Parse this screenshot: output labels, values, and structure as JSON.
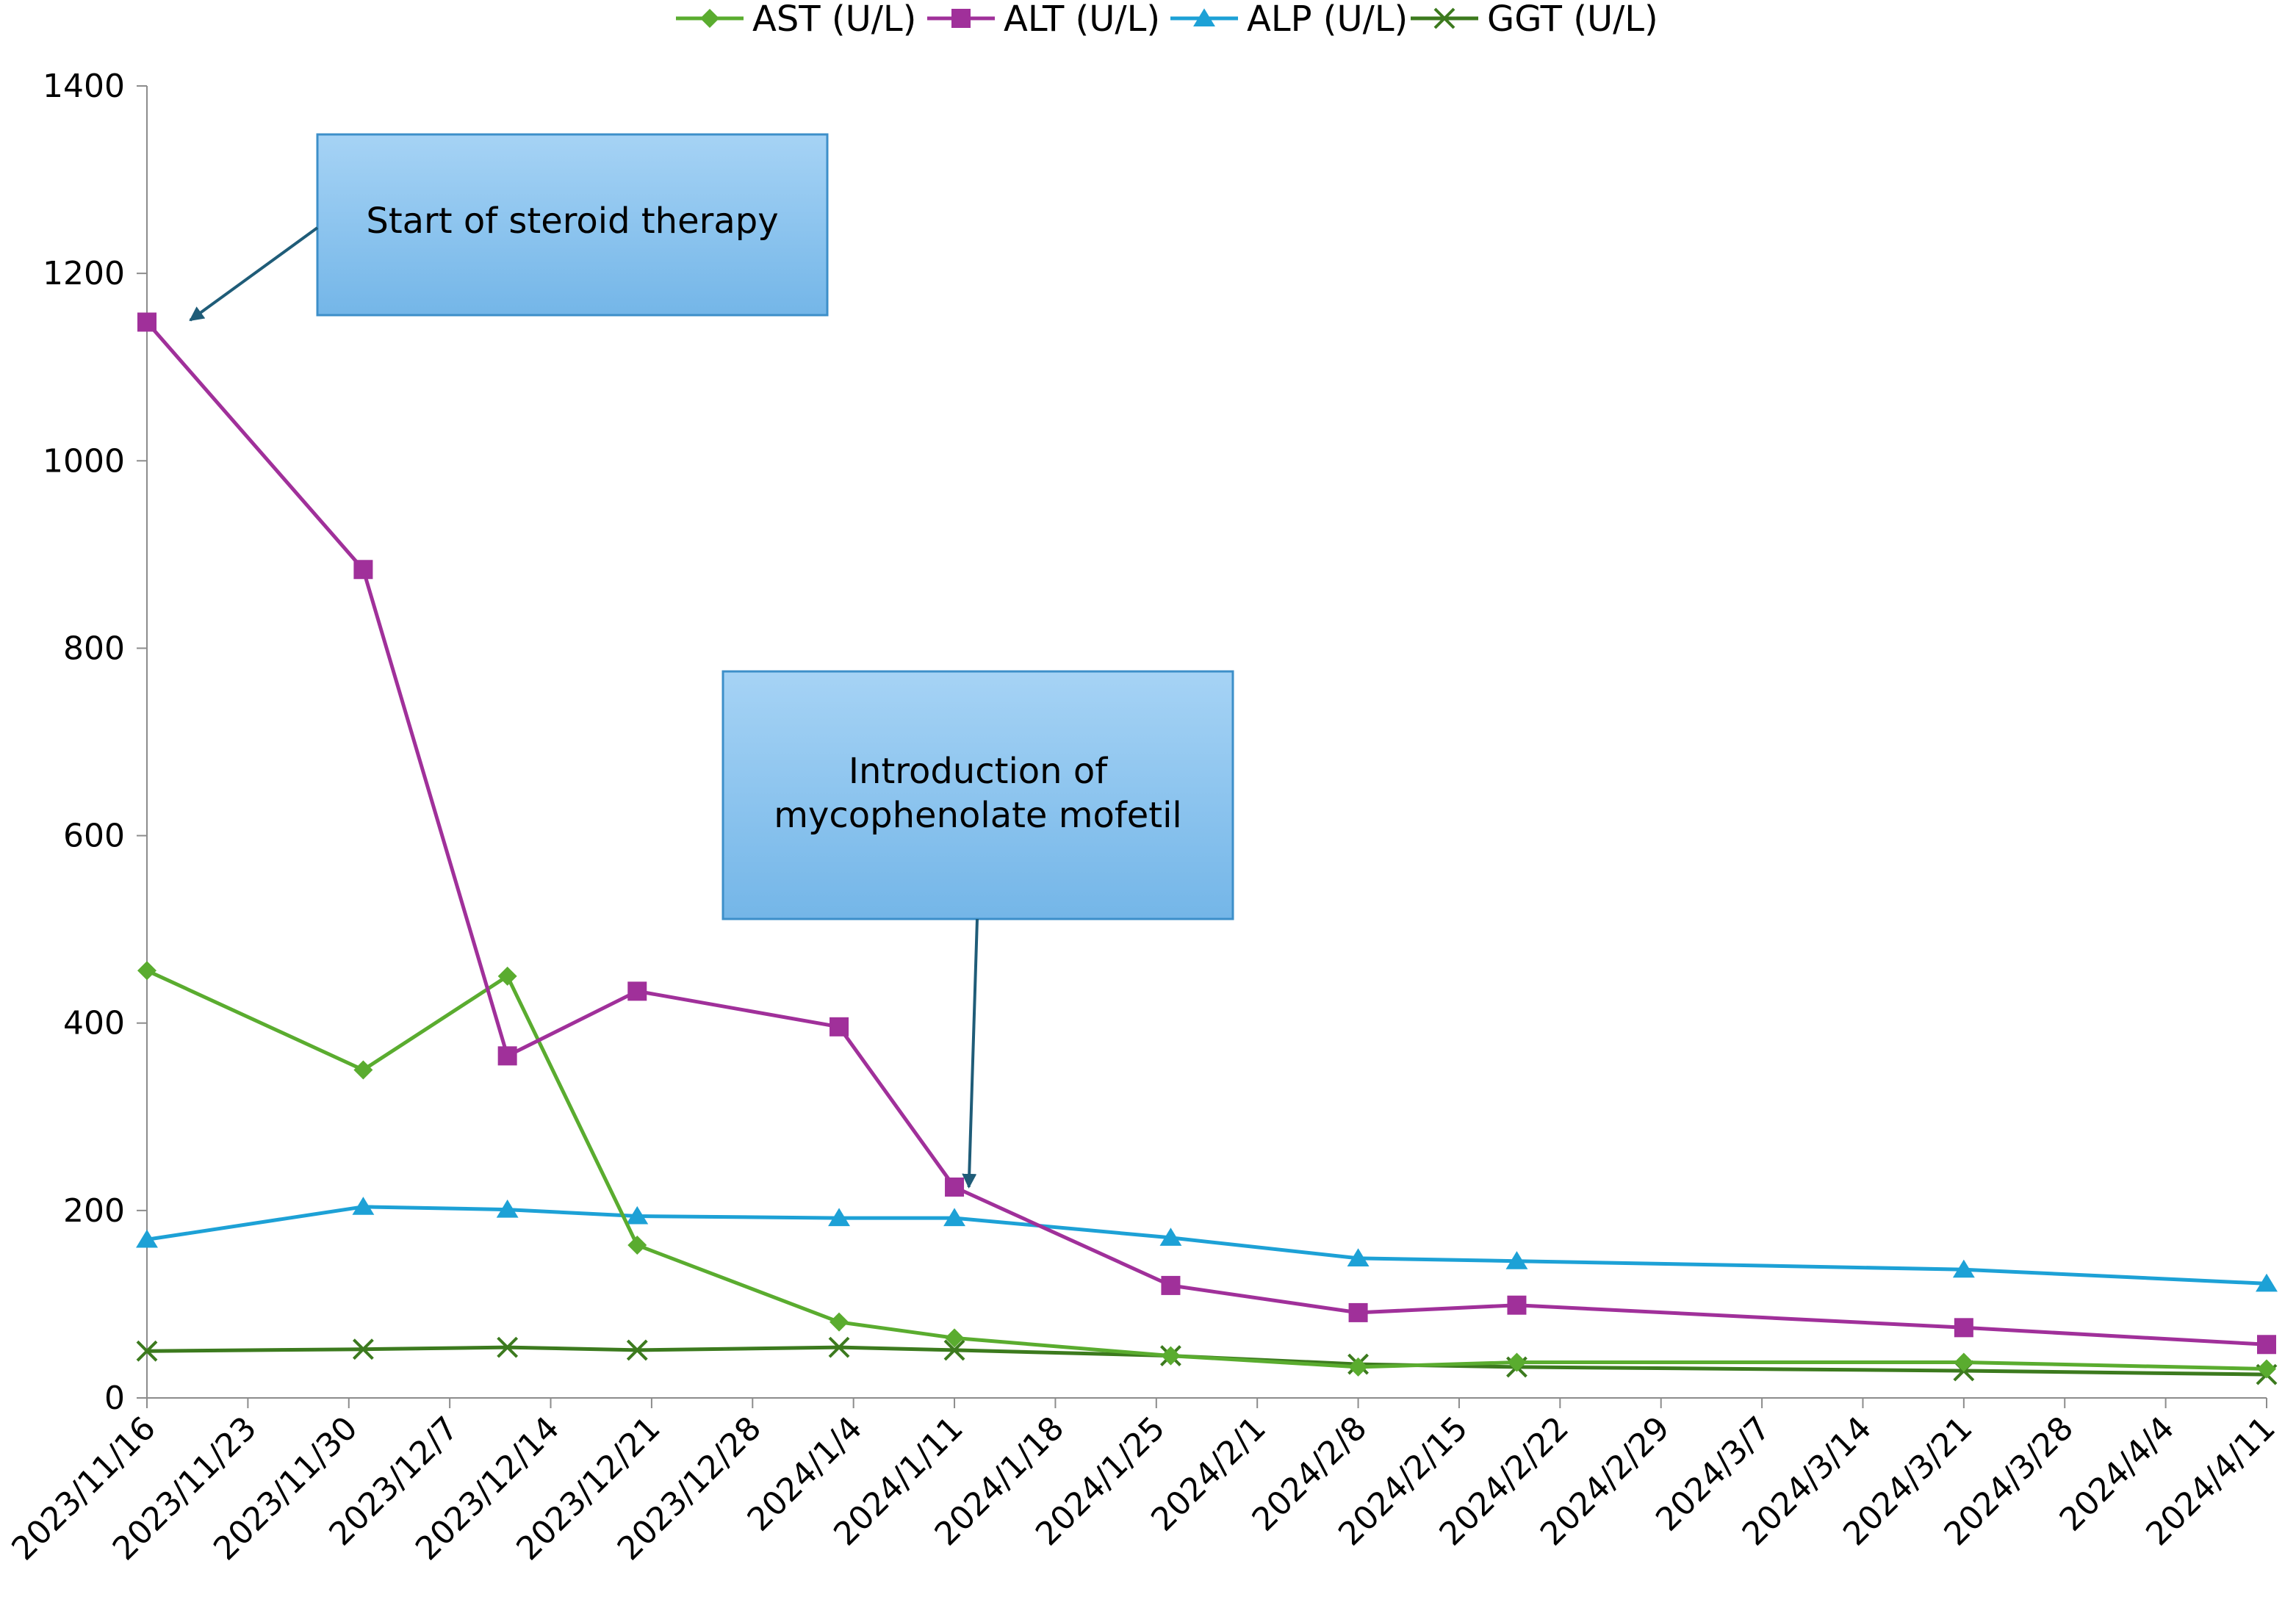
{
  "chart_data": {
    "type": "line",
    "title": "",
    "xlabel": "",
    "ylabel": "",
    "ylim": [
      0,
      1400
    ],
    "yticks": [
      0,
      200,
      400,
      600,
      800,
      1000,
      1200,
      1400
    ],
    "xlim": [
      "2023/11/16",
      "2024/4/11"
    ],
    "xtick_labels": [
      "2023/11/16",
      "2023/11/23",
      "2023/11/30",
      "2023/12/7",
      "2023/12/14",
      "2023/12/21",
      "2023/12/28",
      "2024/1/4",
      "2024/1/11",
      "2024/1/18",
      "2024/1/25",
      "2024/2/1",
      "2024/2/8",
      "2024/2/15",
      "2024/2/22",
      "2024/2/29",
      "2024/3/7",
      "2024/3/14",
      "2024/3/21",
      "2024/3/28",
      "2024/4/4",
      "2024/4/11"
    ],
    "grid": false,
    "legend_position": "top",
    "x": [
      "2023/11/16",
      "2023/12/1",
      "2023/12/11",
      "2023/12/20",
      "2024/1/3",
      "2024/1/11",
      "2024/1/26",
      "2024/2/8",
      "2024/2/19",
      "2024/3/21",
      "2024/4/11"
    ],
    "series": [
      {
        "name": "AST (U/L)",
        "marker": "diamond",
        "color": "#5aac2f",
        "values": [
          456,
          350,
          450,
          163,
          81,
          64,
          45,
          33,
          38,
          38,
          31
        ]
      },
      {
        "name": "ALT (U/L)",
        "marker": "square",
        "color": "#a0309a",
        "values": [
          1148,
          884,
          365,
          434,
          396,
          225,
          120,
          91,
          99,
          75,
          57
        ]
      },
      {
        "name": "ALP (U/L)",
        "marker": "triangle",
        "color": "#1da1d6",
        "values": [
          169,
          204,
          201,
          194,
          192,
          192,
          171,
          149,
          146,
          137,
          122
        ]
      },
      {
        "name": "GGT (U/L)",
        "marker": "x",
        "color": "#3c7a1e",
        "values": [
          50,
          52,
          54,
          51,
          54,
          51,
          45,
          36,
          33,
          29,
          25
        ]
      }
    ],
    "annotations": [
      {
        "text_lines": [
          "Start of steroid therapy"
        ],
        "points_to": {
          "x": "2023/11/19",
          "y": 1150
        }
      },
      {
        "text_lines": [
          "Introduction of",
          "mycophenolate mofetil"
        ],
        "points_to": {
          "x": "2024/1/12",
          "y": 225
        }
      }
    ]
  }
}
